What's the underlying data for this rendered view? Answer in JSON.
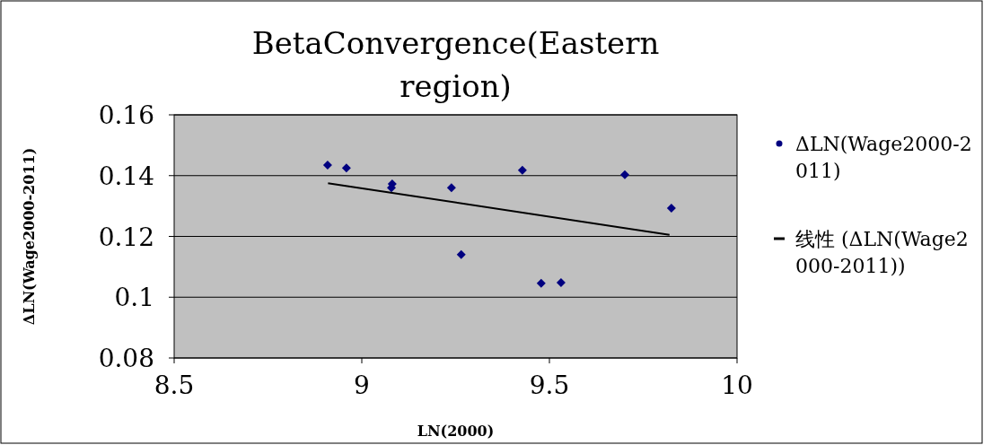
{
  "chart_data": {
    "type": "scatter",
    "title": "BetaConvergence(Eastern region)",
    "xlabel": "LN(2000)",
    "ylabel": "ΔLN(Wage2000-2011)",
    "xlim": [
      8.5,
      10
    ],
    "xticks": [
      8.5,
      9,
      9.5,
      10
    ],
    "ylim": [
      0.08,
      0.16
    ],
    "yticks": [
      0.08,
      0.1,
      0.12,
      0.14,
      0.16
    ],
    "grid": "y",
    "legend": "right",
    "series": [
      {
        "name": "ΔLN(Wage2000-2011)",
        "color": "#000080",
        "marker": "diamond",
        "x": [
          8.909,
          8.959,
          9.081,
          9.079,
          9.239,
          9.265,
          9.428,
          9.478,
          9.531,
          9.701,
          9.825
        ],
        "values": [
          0.1435,
          0.1425,
          0.1373,
          0.136,
          0.136,
          0.114,
          0.1418,
          0.1046,
          0.1048,
          0.1403,
          0.1293
        ]
      },
      {
        "name": "线性 (ΔLN(Wage2000-2011))",
        "type": "line",
        "marker": "none",
        "color": "#000000",
        "x": [
          8.91,
          9.82
        ],
        "values": [
          0.1375,
          0.1205
        ]
      }
    ]
  }
}
